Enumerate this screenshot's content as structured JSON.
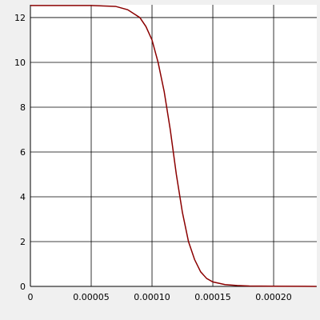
{
  "chart_data": {
    "type": "line",
    "x": [
      0,
      5e-05,
      7e-05,
      8e-05,
      9e-05,
      9.5e-05,
      0.0001,
      0.000105,
      0.00011,
      0.000115,
      0.00012,
      0.000125,
      0.00013,
      0.000135,
      0.00014,
      0.000145,
      0.00015,
      0.00016,
      0.00017,
      0.00018,
      0.0002,
      0.000235
    ],
    "series": [
      {
        "color": "#8b0000",
        "values": [
          12.54,
          12.54,
          12.5,
          12.35,
          12.0,
          11.6,
          11.0,
          10.0,
          8.7,
          7.0,
          5.0,
          3.3,
          2.0,
          1.2,
          0.65,
          0.35,
          0.2,
          0.08,
          0.04,
          0.02,
          0.01,
          0
        ]
      }
    ],
    "xlim": [
      0,
      0.0002355
    ],
    "ylim": [
      0,
      12.57
    ],
    "xticks": [
      0,
      {
        "value": 5e-05,
        "label": "0.00005"
      },
      {
        "value": 0.0001,
        "label": "0.00010"
      },
      {
        "value": 0.00015,
        "label": "0.00015"
      },
      {
        "value": 0.0002,
        "label": "0.00020"
      }
    ],
    "yticks": [
      0,
      2,
      4,
      6,
      8,
      10,
      12
    ],
    "grid": true
  }
}
